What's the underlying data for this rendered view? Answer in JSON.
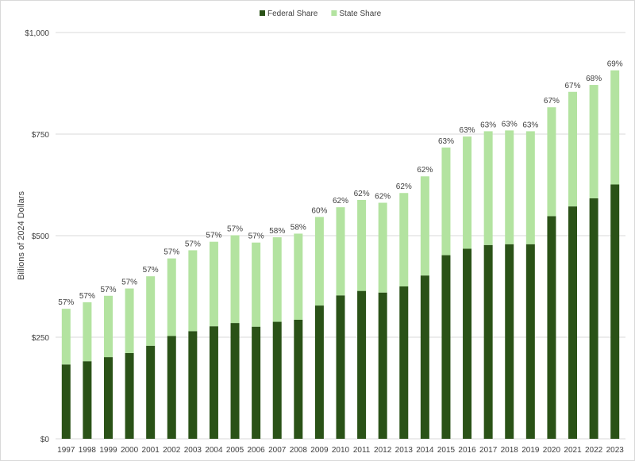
{
  "chart_data": {
    "type": "bar",
    "stacked": true,
    "title": "",
    "xlabel": "",
    "ylabel": "Billions of 2024 Dollars",
    "ylim": [
      0,
      1000
    ],
    "yticks": [
      0,
      250,
      500,
      750,
      1000
    ],
    "ytick_labels": [
      "$0",
      "$250",
      "$500",
      "$750",
      "$1,000"
    ],
    "grid": true,
    "legend_placement": "top-center",
    "categories": [
      "1997",
      "1998",
      "1999",
      "2000",
      "2001",
      "2002",
      "2003",
      "2004",
      "2005",
      "2006",
      "2007",
      "2008",
      "2009",
      "2010",
      "2011",
      "2012",
      "2013",
      "2014",
      "2015",
      "2016",
      "2017",
      "2018",
      "2019",
      "2020",
      "2021",
      "2022",
      "2023"
    ],
    "series": [
      {
        "name": "Federal Share",
        "color": "#2a5217",
        "values": [
          183,
          191,
          201,
          211,
          229,
          253,
          265,
          277,
          285,
          276,
          288,
          293,
          328,
          353,
          364,
          360,
          375,
          402,
          452,
          468,
          477,
          479,
          479,
          548,
          572,
          592,
          626
        ]
      },
      {
        "name": "State Share",
        "color": "#b3e3a0",
        "values": [
          137,
          145,
          151,
          159,
          171,
          191,
          199,
          208,
          216,
          207,
          208,
          212,
          218,
          217,
          224,
          221,
          230,
          244,
          265,
          276,
          280,
          280,
          278,
          268,
          282,
          279,
          281
        ]
      }
    ],
    "data_labels": [
      "57%",
      "57%",
      "57%",
      "57%",
      "57%",
      "57%",
      "57%",
      "57%",
      "57%",
      "57%",
      "58%",
      "58%",
      "60%",
      "62%",
      "62%",
      "62%",
      "62%",
      "62%",
      "63%",
      "63%",
      "63%",
      "63%",
      "63%",
      "67%",
      "67%",
      "68%",
      "69%"
    ]
  }
}
